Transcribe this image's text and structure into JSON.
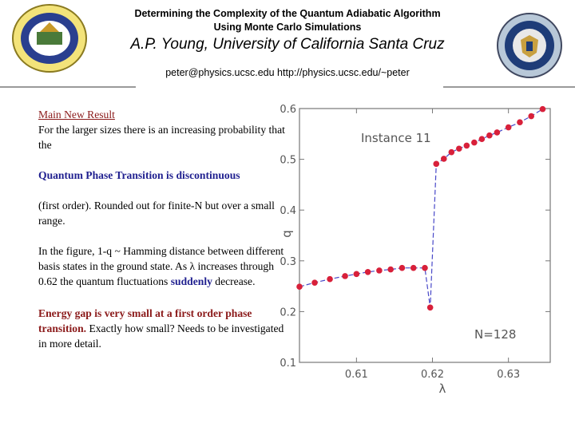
{
  "header": {
    "title_line1": "Determining the Complexity of the Quantum Adiabatic Algorithm",
    "title_line2": "Using Monte Carlo Simulations",
    "author": "A.P. Young, University of California Santa Cruz",
    "contact": "peter@physics.ucsc.edu  http://physics.ucsc.edu/~peter"
  },
  "logos": {
    "left": {
      "icon": "seal-icon",
      "color": "#2a3f8f"
    },
    "right": {
      "icon": "seal-icon",
      "color": "#1e3c78"
    }
  },
  "text": {
    "heading": "Main New Result",
    "p1": "For the larger sizes there is an increasing probability that the",
    "emph": "Quantum Phase Transition is discontinuous",
    "p2": "(first order). Rounded out for finite-N but over a small range.",
    "p3a": "In the figure, 1-q ~ Hamming distance between different basis states in the ground state. As λ increases through 0.62 the quantum fluctuations ",
    "p3b": "suddenly",
    "p3c": " decrease.",
    "p4a": "Energy gap is very small at a first order phase transition.",
    "p4b": " Exactly how small? Needs to be investigated in more detail."
  },
  "chart_data": {
    "type": "line",
    "xlabel": "λ",
    "ylabel": "q",
    "xlim": [
      0.6025,
      0.6355
    ],
    "ylim": [
      0.1,
      0.6
    ],
    "xticks": [
      0.61,
      0.62,
      0.63
    ],
    "xtick_labels": [
      "0.61",
      "0.62",
      "0.63"
    ],
    "yticks": [
      0.1,
      0.2,
      0.3,
      0.4,
      0.5,
      0.6
    ],
    "ytick_labels": [
      "0.1",
      "0.2",
      "0.3",
      "0.4",
      "0.5",
      "0.6"
    ],
    "annotations": {
      "instance": "Instance  11",
      "size": "N=128"
    },
    "colors": {
      "points": "#d8203a",
      "line": "#4848c8",
      "axes": "#777777"
    },
    "series": [
      {
        "x": [
          0.6025,
          0.6045,
          0.6065,
          0.6085,
          0.61,
          0.6115,
          0.613,
          0.6145,
          0.616,
          0.6175,
          0.619,
          0.6197,
          0.6205,
          0.6215,
          0.6225,
          0.6235,
          0.6245,
          0.6255,
          0.6265,
          0.6275,
          0.6285,
          0.63,
          0.6315,
          0.633,
          0.6345
        ],
        "y": [
          0.249,
          0.257,
          0.264,
          0.27,
          0.274,
          0.278,
          0.281,
          0.283,
          0.286,
          0.286,
          0.286,
          0.208,
          0.491,
          0.501,
          0.514,
          0.521,
          0.527,
          0.533,
          0.54,
          0.547,
          0.553,
          0.563,
          0.573,
          0.585,
          0.599
        ]
      }
    ]
  }
}
